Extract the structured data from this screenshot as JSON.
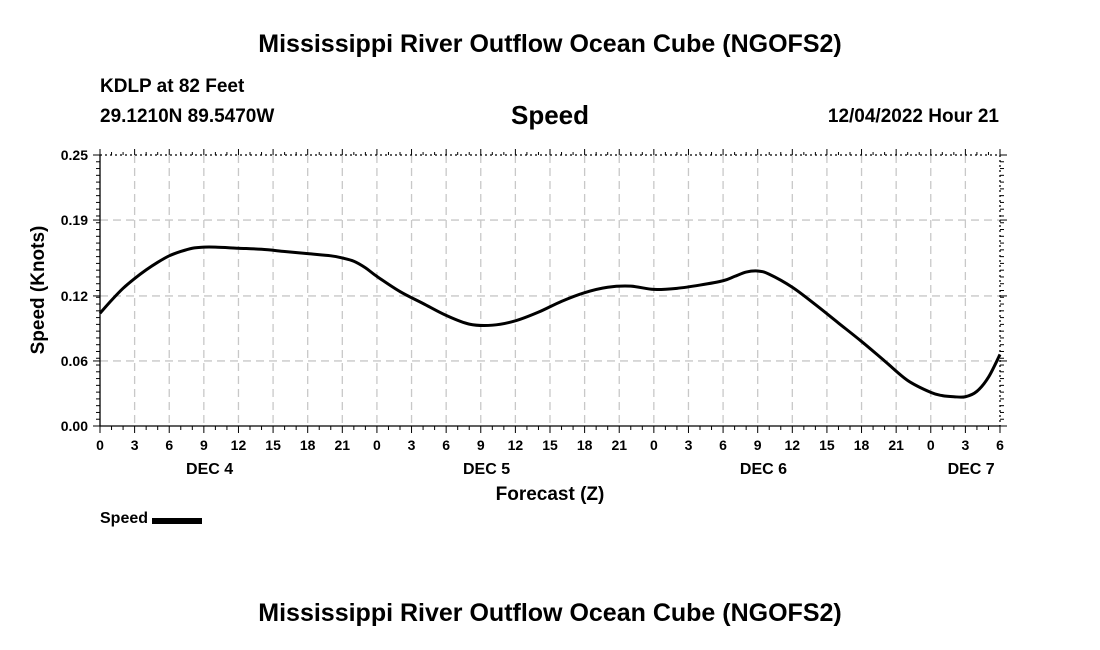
{
  "page": {
    "title_top": "Mississippi River Outflow Ocean Cube (NGOFS2)",
    "title_bottom": "Mississippi River Outflow Ocean Cube (NGOFS2)",
    "station": "KDLP at 82 Feet",
    "coords": "29.1210N  89.5470W",
    "subtitle": "Speed",
    "datetime": "12/04/2022 Hour 21"
  },
  "chart_data": {
    "type": "line",
    "title": "Speed",
    "xlabel": "Forecast (Z)",
    "ylabel": "Speed (Knots)",
    "xlim": [
      0,
      78
    ],
    "ylim": [
      0,
      0.25
    ],
    "grid": true,
    "y_ticks": [
      0.0,
      0.06,
      0.12,
      0.19,
      0.25
    ],
    "y_tick_labels": [
      "0.00",
      "0.06",
      "0.12",
      "0.19",
      "0.25"
    ],
    "x_tick_hours": [
      0,
      3,
      6,
      9,
      12,
      15,
      18,
      21,
      24,
      27,
      30,
      33,
      36,
      39,
      42,
      45,
      48,
      51,
      54,
      57,
      60,
      63,
      66,
      69,
      72,
      75,
      78
    ],
    "x_tick_labels": [
      "0",
      "3",
      "6",
      "9",
      "12",
      "15",
      "18",
      "21",
      "0",
      "3",
      "6",
      "9",
      "12",
      "15",
      "18",
      "21",
      "0",
      "3",
      "6",
      "9",
      "12",
      "15",
      "18",
      "21",
      "0",
      "3",
      "6"
    ],
    "day_labels": [
      {
        "label": "DEC 4",
        "hour": 9.5
      },
      {
        "label": "DEC 5",
        "hour": 33.5
      },
      {
        "label": "DEC 6",
        "hour": 57.5
      },
      {
        "label": "DEC 7",
        "hour": 75.5
      }
    ],
    "legend": "Speed",
    "series": [
      {
        "name": "Speed",
        "color": "#000000",
        "x": [
          0,
          1,
          2,
          3,
          4,
          5,
          6,
          7,
          8,
          9,
          10,
          12,
          14,
          16,
          18,
          20,
          21,
          22,
          23,
          24,
          26,
          28,
          30,
          32,
          34,
          36,
          38,
          40,
          42,
          44,
          46,
          48,
          50,
          52,
          54,
          55,
          56,
          57,
          58,
          60,
          62,
          64,
          66,
          68,
          70,
          72,
          73,
          74,
          75,
          76,
          77,
          78
        ],
        "y": [
          0.104,
          0.116,
          0.127,
          0.136,
          0.144,
          0.151,
          0.157,
          0.161,
          0.164,
          0.165,
          0.165,
          0.164,
          0.163,
          0.161,
          0.159,
          0.157,
          0.155,
          0.152,
          0.146,
          0.138,
          0.124,
          0.113,
          0.102,
          0.094,
          0.093,
          0.097,
          0.105,
          0.115,
          0.123,
          0.128,
          0.129,
          0.126,
          0.127,
          0.13,
          0.134,
          0.138,
          0.142,
          0.143,
          0.14,
          0.128,
          0.112,
          0.095,
          0.078,
          0.06,
          0.042,
          0.031,
          0.028,
          0.027,
          0.027,
          0.032,
          0.045,
          0.066
        ]
      }
    ]
  }
}
